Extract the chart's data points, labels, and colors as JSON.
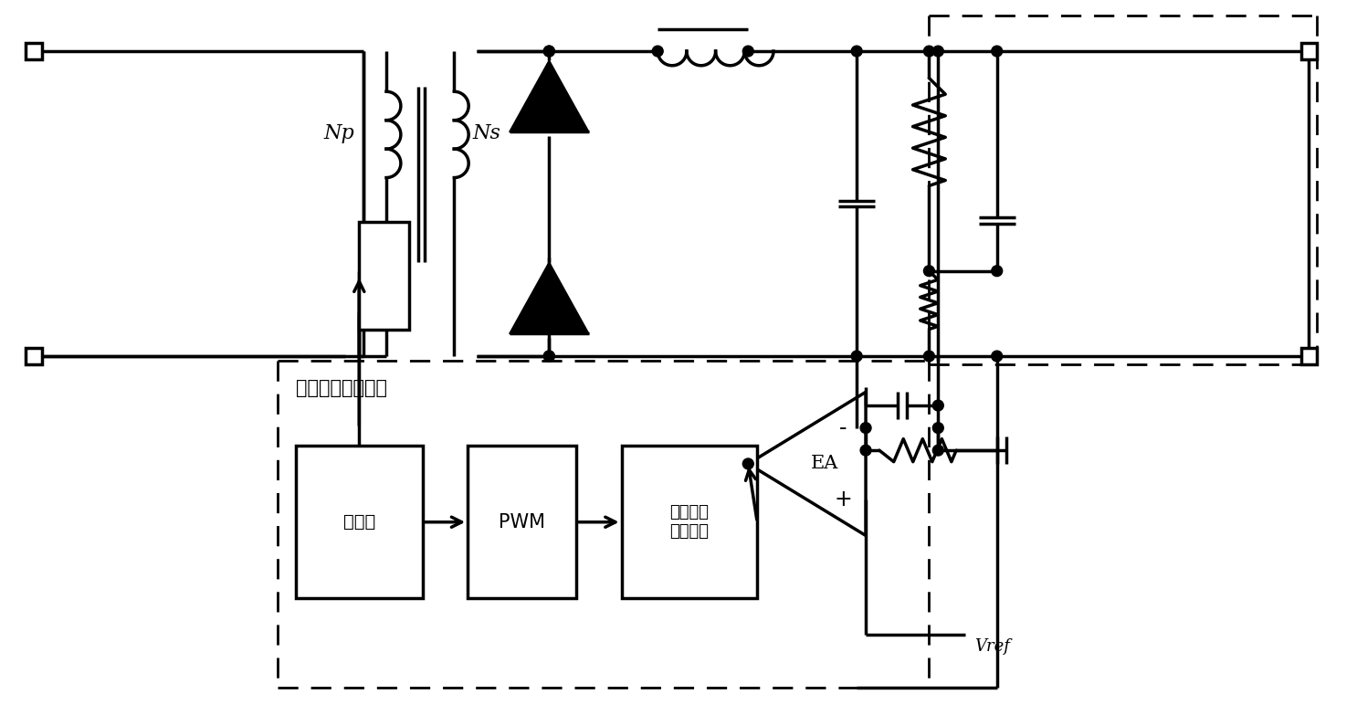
{
  "bg_color": "#ffffff",
  "line_color": "#000000",
  "lw": 2.5,
  "lw_thin": 1.5,
  "fig_width": 14.86,
  "fig_height": 7.83,
  "labels": {
    "Np": "Np",
    "Ns": "Ns",
    "EA": "EA",
    "PWM": "PWM",
    "driver": "驱动器",
    "iso": "隔离传输\n（放大）",
    "feedback_label": "系统反馈控制部分",
    "Vref": "Vref"
  },
  "font_size": 12
}
